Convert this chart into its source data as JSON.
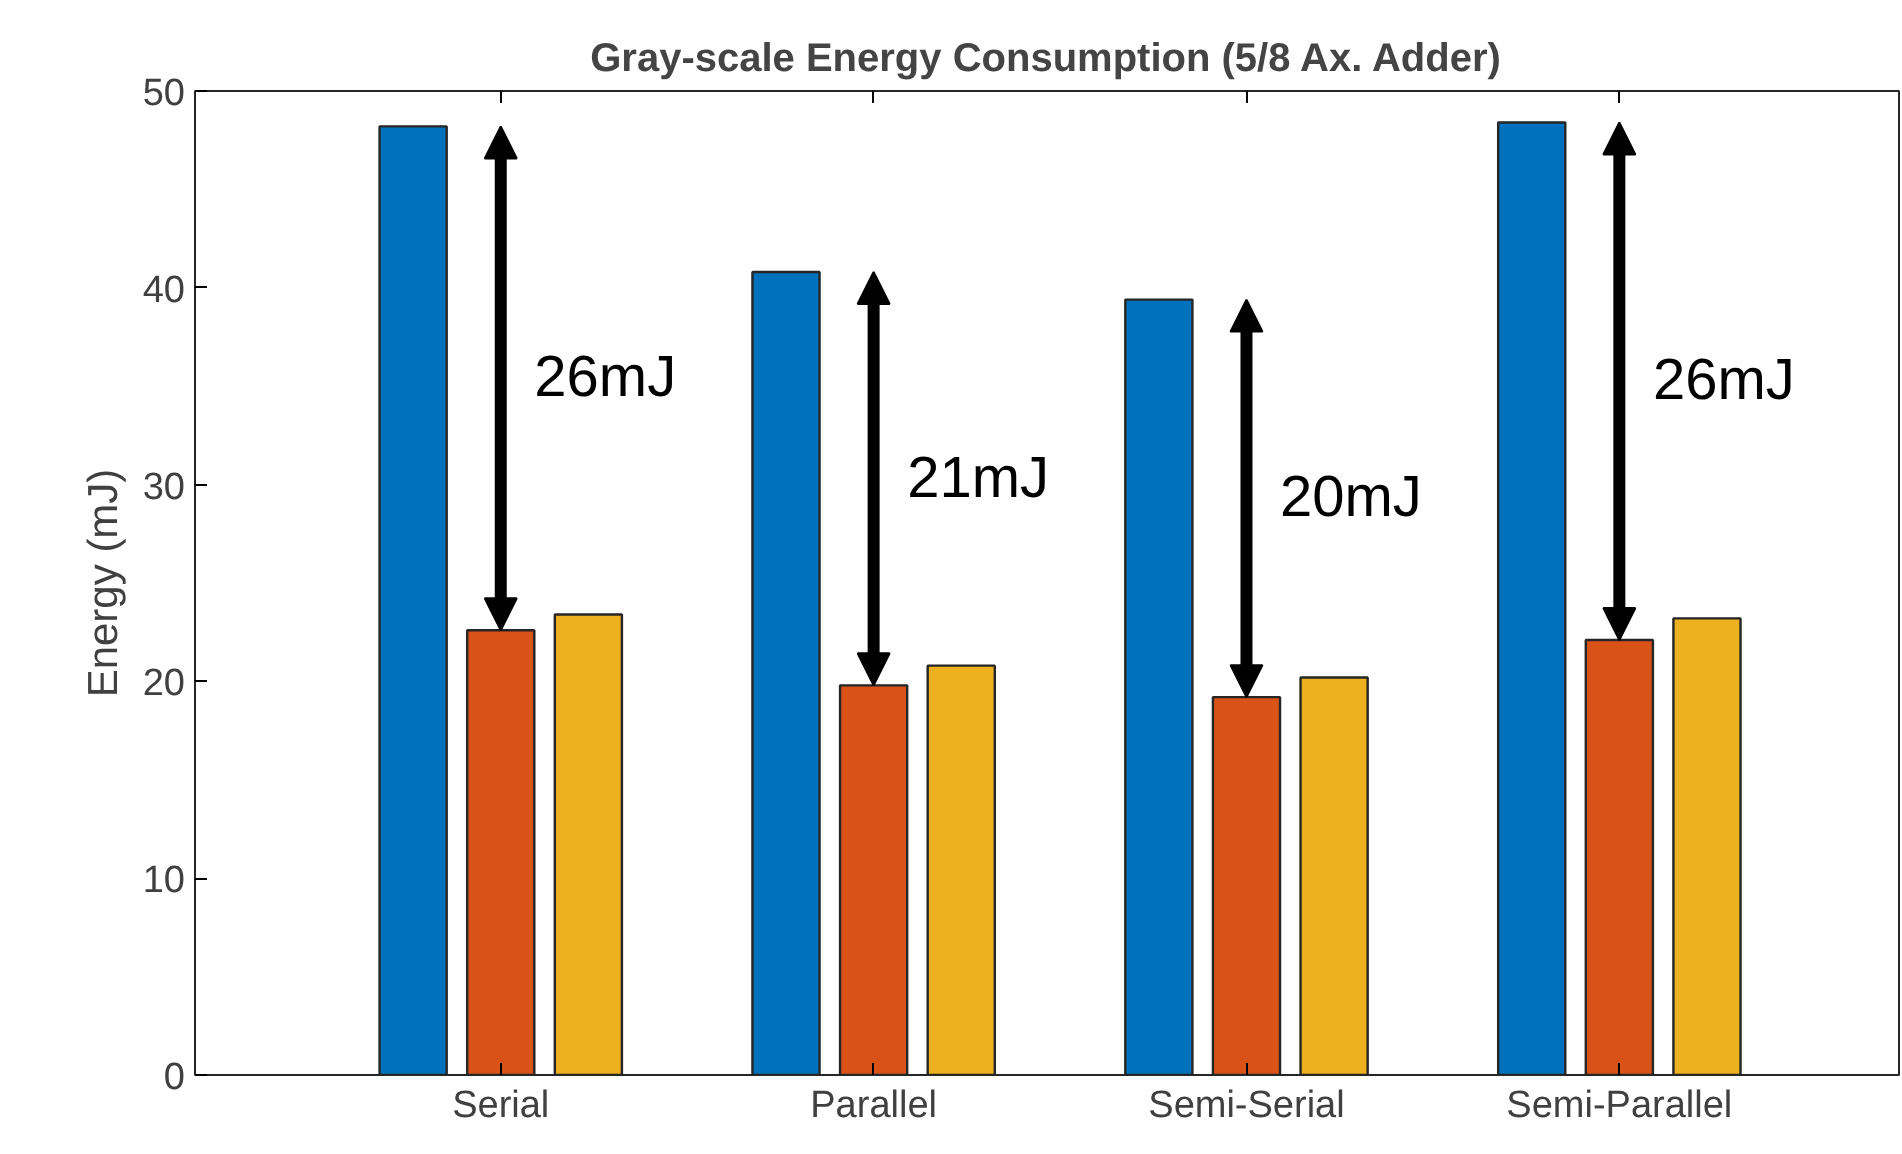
{
  "chart_data": {
    "type": "bar",
    "title": "Gray-scale Energy Consumption (5/8 Ax. Adder)",
    "ylabel": "Energy (mJ)",
    "categories": [
      "Serial",
      "Parallel",
      "Semi-Serial",
      "Semi-Parallel"
    ],
    "series": [
      {
        "color": "#0072bd",
        "values": [
          48.2,
          40.8,
          39.4,
          48.4
        ]
      },
      {
        "color": "#d95319",
        "values": [
          22.6,
          19.8,
          19.2,
          22.1
        ]
      },
      {
        "color": "#edb120",
        "values": [
          23.4,
          20.8,
          20.2,
          23.2
        ]
      }
    ],
    "ylim": [
      0,
      50
    ],
    "yticks": [
      0,
      10,
      20,
      30,
      40,
      50
    ],
    "annotations": [
      "26mJ",
      "21mJ",
      "20mJ",
      "26mJ"
    ]
  }
}
